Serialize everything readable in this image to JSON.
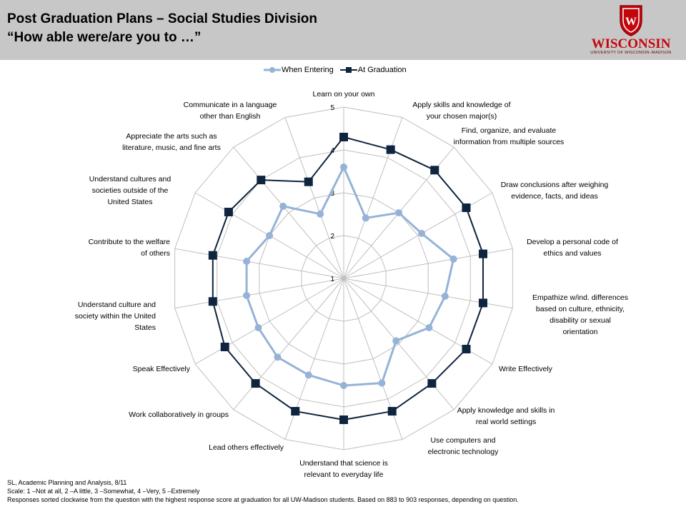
{
  "header": {
    "title_line1": "Post Graduation Plans – Social Studies Division",
    "title_line2": "“How able were/are you to …”",
    "logo_word": "WISCONSIN",
    "logo_sub": "UNIVERSITY OF WISCONSIN–MADISON",
    "logo_crest_letter": "W"
  },
  "colors": {
    "header_bg": "#c7c7c7",
    "when_entering": "#95b3d7",
    "at_graduation": "#0f243e",
    "grid": "#bfbfbf",
    "logo_red": "#c5050c"
  },
  "footer": {
    "line1": "SL, Academic Planning and Analysis, 8/11",
    "line2": "Scale: 1 –Not at all, 2 –A little, 3 –Somewhat, 4 –Very, 5 –Extremely",
    "line3": "Responses sorted clockwise from the question with the highest response score at graduation for all UW-Madison students. Based on 883 to 903 responses, depending on question."
  },
  "chart_data": {
    "type": "radar",
    "scale_min": 1,
    "scale_max": 5,
    "ticks": [
      "1",
      "2",
      "3",
      "4",
      "5"
    ],
    "legend_position": "top",
    "categories": [
      "Learn on your own",
      "Apply skills and knowledge of your chosen major(s)",
      "Find, organize, and evaluate information from multiple sources",
      "Draw conclusions after weighing evidence, facts, and ideas",
      "Develop a personal code of ethics and values",
      "Empathize w/ind. differences based on culture, ethnicity, disability or sexual orientation",
      "Write Effectively",
      "Apply knowledge and skills in real world settings",
      "Use computers and electronic technology",
      "Understand that science is relevant to everyday life",
      "Lead others effectively",
      "Work collaboratively in groups",
      "Speak Effectively",
      "Understand culture and society within the United States",
      "Contribute to the welfare of others",
      "Understand cultures and societies outside of the United States",
      "Appreciate the arts such as literature, music, and fine arts",
      "Communicate in a language other than English"
    ],
    "series": [
      {
        "name": "When Entering",
        "color": "#95b3d7",
        "marker": "circle",
        "values": [
          3.6,
          2.5,
          3.0,
          3.1,
          3.6,
          3.4,
          3.3,
          2.9,
          3.6,
          3.5,
          3.4,
          3.4,
          3.3,
          3.3,
          3.3,
          3.0,
          3.2,
          2.6
        ]
      },
      {
        "name": "At Graduation",
        "color": "#0f243e",
        "marker": "square",
        "values": [
          4.3,
          4.2,
          4.3,
          4.3,
          4.3,
          4.3,
          4.3,
          4.2,
          4.3,
          4.3,
          4.3,
          4.2,
          4.2,
          4.1,
          4.1,
          4.1,
          4.0,
          3.4
        ]
      }
    ]
  }
}
